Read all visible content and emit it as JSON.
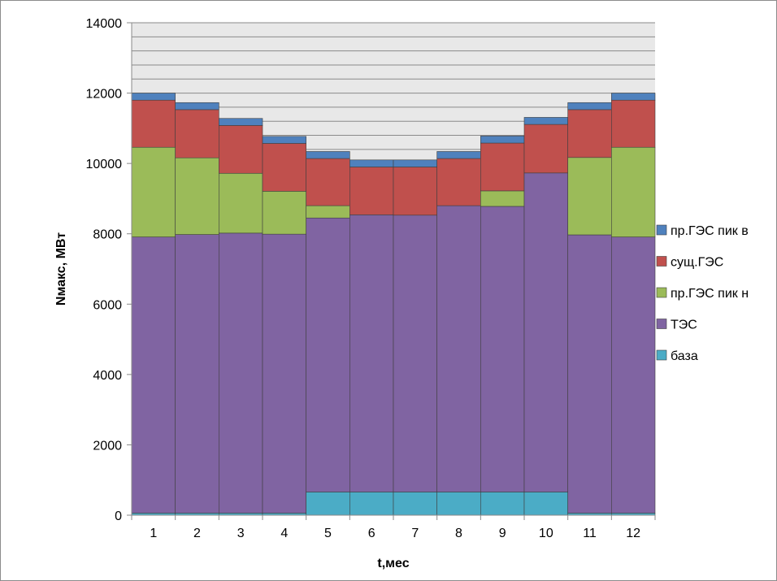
{
  "chart_data": {
    "type": "bar",
    "stacked": true,
    "title": "",
    "xlabel": "t,мес",
    "ylabel": "Nмакс, МВт",
    "ylim": [
      0,
      14000
    ],
    "yticks": [
      0,
      2000,
      4000,
      6000,
      8000,
      10000,
      12000,
      14000
    ],
    "grid": true,
    "grid_minor_step": 400,
    "plot_background": "#e8e8e8",
    "legend_position": "right",
    "categories": [
      "1",
      "2",
      "3",
      "4",
      "5",
      "6",
      "7",
      "8",
      "9",
      "10",
      "11",
      "12"
    ],
    "series": [
      {
        "name": "база",
        "color": "#4bacc6",
        "values": [
          60,
          60,
          60,
          60,
          660,
          660,
          660,
          660,
          660,
          660,
          60,
          60
        ]
      },
      {
        "name": "ТЭС",
        "color": "#8064a2",
        "values": [
          7850,
          7920,
          7960,
          7930,
          7790,
          7880,
          7870,
          8140,
          8120,
          9070,
          7910,
          7850
        ]
      },
      {
        "name": "пр.ГЭС пик н",
        "color": "#9bbb59",
        "values": [
          2550,
          2180,
          1700,
          1220,
          350,
          0,
          0,
          0,
          440,
          0,
          2200,
          2550
        ]
      },
      {
        "name": "сущ.ГЭС",
        "color": "#c0504d",
        "values": [
          1340,
          1370,
          1360,
          1360,
          1340,
          1360,
          1370,
          1340,
          1360,
          1380,
          1360,
          1340
        ]
      },
      {
        "name": "пр.ГЭС пик в",
        "color": "#4f81bd",
        "values": [
          200,
          200,
          200,
          200,
          200,
          200,
          200,
          200,
          200,
          200,
          200,
          200
        ]
      }
    ],
    "legend_order": [
      "пр.ГЭС пик в",
      "сущ.ГЭС",
      "пр.ГЭС пик н",
      "ТЭС",
      "база"
    ]
  }
}
